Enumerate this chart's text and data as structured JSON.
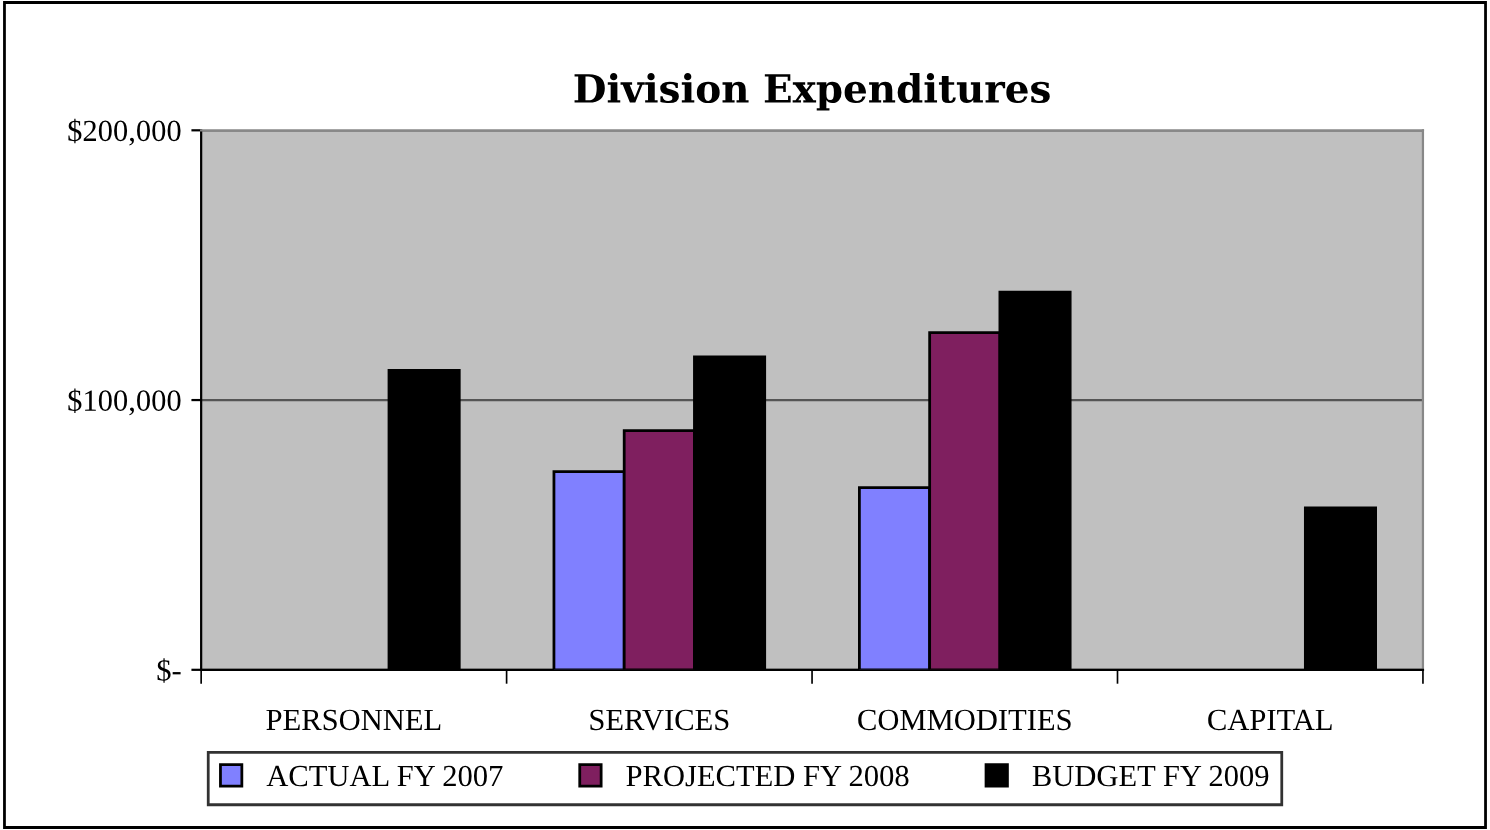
{
  "chart_data": {
    "type": "bar",
    "title": "Division Expenditures",
    "categories": [
      "PERSONNEL",
      "SERVICES",
      "COMMODITIES",
      "CAPITAL"
    ],
    "series": [
      {
        "name": "ACTUAL FY 2007",
        "color": "#8080ff",
        "values": [
          null,
          73500,
          67500,
          null
        ]
      },
      {
        "name": "PROJECTED FY 2008",
        "color": "#7f1f5f",
        "values": [
          null,
          88700,
          125000,
          null
        ]
      },
      {
        "name": "BUDGET FY 2009",
        "color": "#000000",
        "values": [
          111000,
          116000,
          140000,
          60000
        ]
      }
    ],
    "ylim": [
      0,
      200000
    ],
    "yticks": [
      {
        "value": 0,
        "label": "$-"
      },
      {
        "value": 100000,
        "label": "$100,000"
      },
      {
        "value": 200000,
        "label": "$200,000"
      }
    ],
    "grid": "y",
    "legend": "bottom"
  }
}
